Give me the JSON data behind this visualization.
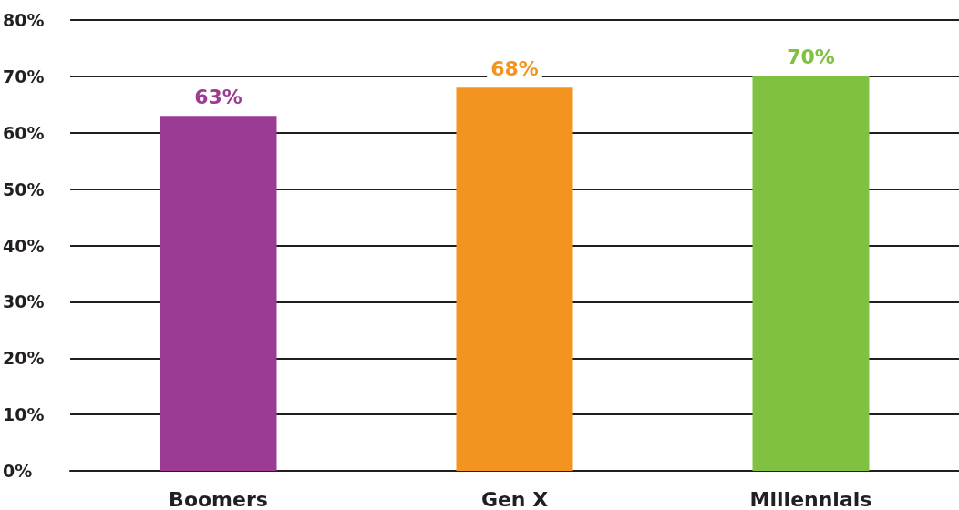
{
  "chart_data": {
    "type": "bar",
    "categories": [
      "Boomers",
      "Gen X",
      "Millennials"
    ],
    "values": [
      63,
      68,
      70
    ],
    "colors": [
      "#9b3b93",
      "#f39320",
      "#80c142"
    ],
    "value_labels": [
      "63%",
      "68%",
      "70%"
    ],
    "ylim": [
      0,
      80
    ],
    "yticks": [
      {
        "value": 0,
        "label": "0%"
      },
      {
        "value": 10,
        "label": "10%"
      },
      {
        "value": 20,
        "label": "20%"
      },
      {
        "value": 30,
        "label": "30%"
      },
      {
        "value": 40,
        "label": "40%"
      },
      {
        "value": 50,
        "label": "50%"
      },
      {
        "value": 60,
        "label": "60%"
      },
      {
        "value": 70,
        "label": "70%"
      },
      {
        "value": 80,
        "label": "80%"
      }
    ],
    "grid": "y"
  }
}
